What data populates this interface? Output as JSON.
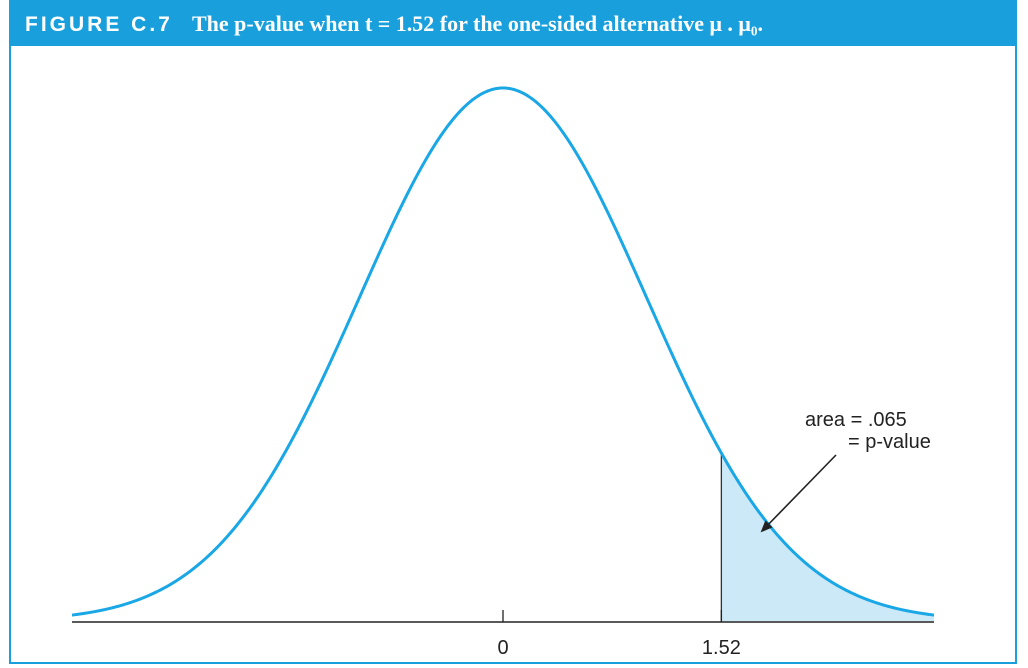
{
  "figure": {
    "label": "FIGURE C.7",
    "caption": "The p-value when t = 1.52 for the one-sided alternative μ . μ₀."
  },
  "colors": {
    "caption_bar": "#19a0dc",
    "curve": "#19a7e6",
    "shade": "#cce9f8",
    "axis": "#222222"
  },
  "chart_data": {
    "type": "area",
    "curve": "standard normal density",
    "xlim": [
      -3.0,
      3.0
    ],
    "ticks": [
      {
        "value": 0,
        "label": "0"
      },
      {
        "value": 1.52,
        "label": "1.52"
      }
    ],
    "shaded_region": {
      "from": 1.52,
      "to": 3.0,
      "area": 0.065
    },
    "annotation": {
      "line1": "area = .065",
      "line2": "= p-value"
    }
  }
}
